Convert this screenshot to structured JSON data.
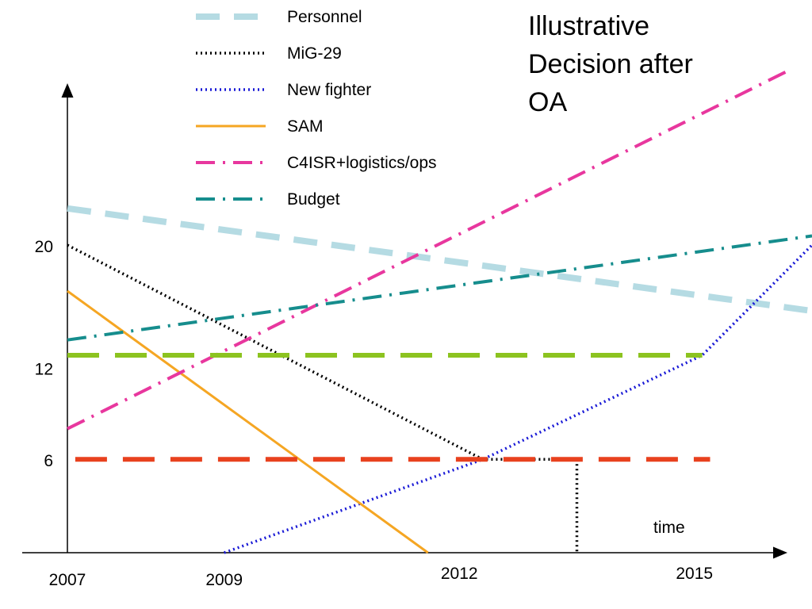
{
  "chart_data": {
    "type": "line",
    "title": "",
    "annotation_lines": [
      "Illustrative",
      "Decision after",
      "OA"
    ],
    "xlabel": "time",
    "ylabel": "",
    "x_ticks": [
      "2007",
      "2009",
      "2012",
      "2015"
    ],
    "y_ticks": [
      "20",
      "12",
      "6"
    ],
    "xlim": [
      2007,
      2016.5
    ],
    "ylim": [
      0,
      31
    ],
    "legend_position": "top-center",
    "series": [
      {
        "name": "Personnel",
        "color": "#b5dbe3",
        "style": "dashed",
        "x": [
          2007,
          2016.5
        ],
        "y": [
          22.5,
          15.8
        ]
      },
      {
        "name": "MiG-29",
        "color": "#000000",
        "style": "dotted",
        "x": [
          2007,
          2012.3,
          2013.5,
          2013.5
        ],
        "y": [
          20.1,
          6.1,
          6.1,
          0
        ]
      },
      {
        "name": "New fighter",
        "color": "#1a1ad6",
        "style": "dotted",
        "x": [
          2009.0,
          2012.3,
          2015.1,
          2016.5
        ],
        "y": [
          0,
          6.1,
          12.9,
          20.1
        ]
      },
      {
        "name": "SAM",
        "color": "#f5a623",
        "style": "solid",
        "x": [
          2007,
          2011.6
        ],
        "y": [
          17.1,
          0
        ]
      },
      {
        "name": "C4ISR+logistics/ops",
        "color": "#e8379e",
        "style": "dashdot",
        "x": [
          2007,
          2016.2
        ],
        "y": [
          8.1,
          31.5
        ]
      },
      {
        "name": "Budget",
        "color": "#168d8d",
        "style": "dashdot",
        "x": [
          2007,
          2016.5
        ],
        "y": [
          13.9,
          20.7
        ]
      },
      {
        "name": "",
        "color": "#8cc320",
        "style": "longdash",
        "x": [
          2007,
          2015.1
        ],
        "y": [
          12.9,
          12.9
        ]
      },
      {
        "name": "",
        "color": "#e8411e",
        "style": "longdash",
        "x": [
          2007.1,
          2015.2
        ],
        "y": [
          6.1,
          6.1
        ]
      }
    ]
  }
}
